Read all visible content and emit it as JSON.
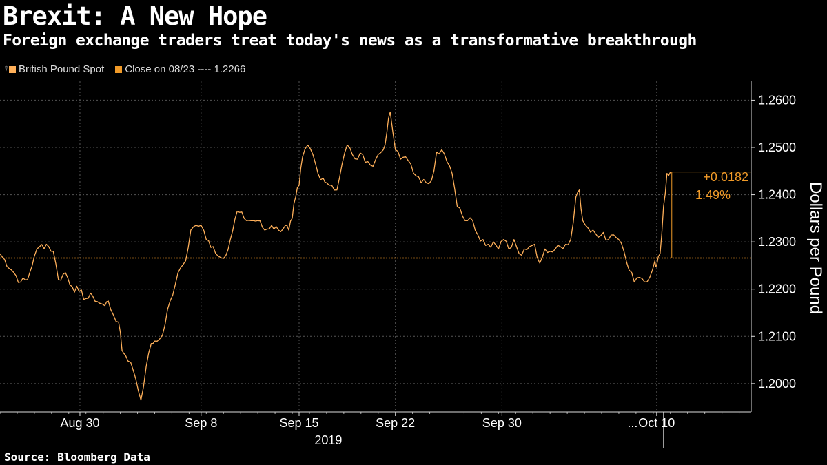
{
  "title": "Brexit: A New Hope",
  "subtitle": "Foreign exchange traders treat today's news as a transformative breakthrough",
  "source": "Source: Bloomberg Data",
  "legend": [
    {
      "label": "British Pound Spot",
      "color": "#ffb05a"
    },
    {
      "label": "Close on 08/23 ---- 1.2266",
      "color": "#f09a28"
    }
  ],
  "chart_data": {
    "type": "line",
    "title": "Brexit: A New Hope",
    "subtitle": "Foreign exchange traders treat today's news as a transformative breakthrough",
    "ylabel": "Dollars per Pound",
    "xlabel": "2019",
    "ylim": [
      1.194,
      1.264
    ],
    "xlim": [
      0,
      43.7
    ],
    "yticks": [
      1.26,
      1.25,
      1.24,
      1.23,
      1.22,
      1.21,
      1.2
    ],
    "ytick_labels": [
      "1.2600",
      "1.2500",
      "1.2400",
      "1.2300",
      "1.2200",
      "1.2100",
      "1.2000"
    ],
    "xticks": [
      {
        "x": 4.65,
        "label": "Aug 30"
      },
      {
        "x": 11.7,
        "label": "Sep 8"
      },
      {
        "x": 17.4,
        "label": "Sep 15"
      },
      {
        "x": 23.0,
        "label": "Sep 22"
      },
      {
        "x": 29.2,
        "label": "Sep 30"
      },
      {
        "x": 38.2,
        "label": "Oct 10"
      }
    ],
    "x_ellipsis": "...",
    "x_year_label": "2019",
    "reference_line": {
      "value": 1.2266,
      "label": "Close on 08/23 ---- 1.2266"
    },
    "annotation": {
      "change": "+0.0182",
      "percent": "1.49%",
      "last_value": 1.2448
    },
    "grid": true,
    "legend_position": "top-left",
    "series": [
      {
        "name": "British Pound Spot",
        "x": [
          0,
          0.8,
          1.2,
          1.6,
          2.0,
          2.3,
          2.7,
          3.1,
          3.4,
          3.8,
          4.2,
          4.6,
          5.0,
          5.4,
          5.8,
          6.1,
          6.3,
          6.6,
          6.9,
          7.1,
          7.3,
          7.6,
          7.9,
          8.2,
          8.5,
          8.8,
          9.0,
          9.3,
          9.6,
          9.9,
          10.2,
          10.5,
          10.8,
          11.1,
          11.4,
          11.7,
          12.0,
          12.4,
          12.7,
          13.0,
          13.4,
          13.8,
          14.2,
          14.6,
          15.0,
          15.4,
          15.8,
          16.2,
          16.6,
          16.8,
          17.0,
          17.2,
          17.4,
          17.6,
          17.9,
          18.2,
          18.5,
          18.8,
          19.0,
          19.3,
          19.6,
          19.9,
          20.2,
          20.5,
          20.8,
          21.1,
          21.4,
          21.7,
          22.0,
          22.3,
          22.5,
          22.7,
          23.0,
          23.3,
          23.6,
          23.9,
          24.2,
          24.5,
          24.8,
          25.1,
          25.4,
          25.7,
          26.0,
          26.3,
          26.6,
          26.9,
          27.2,
          27.5,
          27.8,
          28.1,
          28.4,
          28.7,
          29.0,
          29.3,
          29.6,
          29.9,
          30.2,
          30.5,
          30.8,
          31.1,
          31.4,
          31.7,
          32.0,
          32.3,
          32.6,
          32.9,
          33.2,
          33.5,
          33.7,
          33.9,
          34.2,
          34.5,
          34.8,
          35.1,
          35.4,
          35.7,
          36.0,
          36.3,
          36.6,
          36.9,
          37.2,
          37.5,
          37.8,
          38.1,
          38.2,
          38.4,
          38.6,
          38.8,
          39.0
        ],
        "values": [
          1.2275,
          1.2235,
          1.2215,
          1.222,
          1.227,
          1.229,
          1.2295,
          1.228,
          1.222,
          1.2235,
          1.2205,
          1.2195,
          1.218,
          1.2185,
          1.217,
          1.2165,
          1.2175,
          1.2145,
          1.213,
          1.207,
          1.206,
          1.2045,
          1.201,
          1.1965,
          1.2035,
          1.2085,
          1.209,
          1.2095,
          1.2125,
          1.2175,
          1.221,
          1.2245,
          1.226,
          1.2325,
          1.2335,
          1.2335,
          1.2305,
          1.229,
          1.227,
          1.2265,
          1.2305,
          1.2365,
          1.235,
          1.2345,
          1.2345,
          1.2325,
          1.2335,
          1.2325,
          1.2335,
          1.2325,
          1.235,
          1.2395,
          1.242,
          1.248,
          1.2505,
          1.2485,
          1.2445,
          1.2435,
          1.2425,
          1.242,
          1.241,
          1.2465,
          1.2505,
          1.2485,
          1.2475,
          1.2485,
          1.247,
          1.246,
          1.2485,
          1.2495,
          1.253,
          1.2575,
          1.2495,
          1.2475,
          1.248,
          1.2465,
          1.244,
          1.2425,
          1.2425,
          1.243,
          1.249,
          1.2495,
          1.247,
          1.2445,
          1.2375,
          1.2355,
          1.2345,
          1.2345,
          1.2315,
          1.2305,
          1.2295,
          1.23,
          1.2285,
          1.2305,
          1.2285,
          1.2305,
          1.2275,
          1.2285,
          1.229,
          1.2295,
          1.2255,
          1.2285,
          1.228,
          1.2285,
          1.229,
          1.2295,
          1.2305,
          1.2395,
          1.241,
          1.2345,
          1.233,
          1.2325,
          1.231,
          1.232,
          1.2305,
          1.2315,
          1.2305,
          1.228,
          1.224,
          1.2215,
          1.2225,
          1.2215,
          1.2225,
          1.226,
          1.225,
          1.2275,
          1.2375,
          1.2445,
          1.2448
        ]
      }
    ]
  }
}
